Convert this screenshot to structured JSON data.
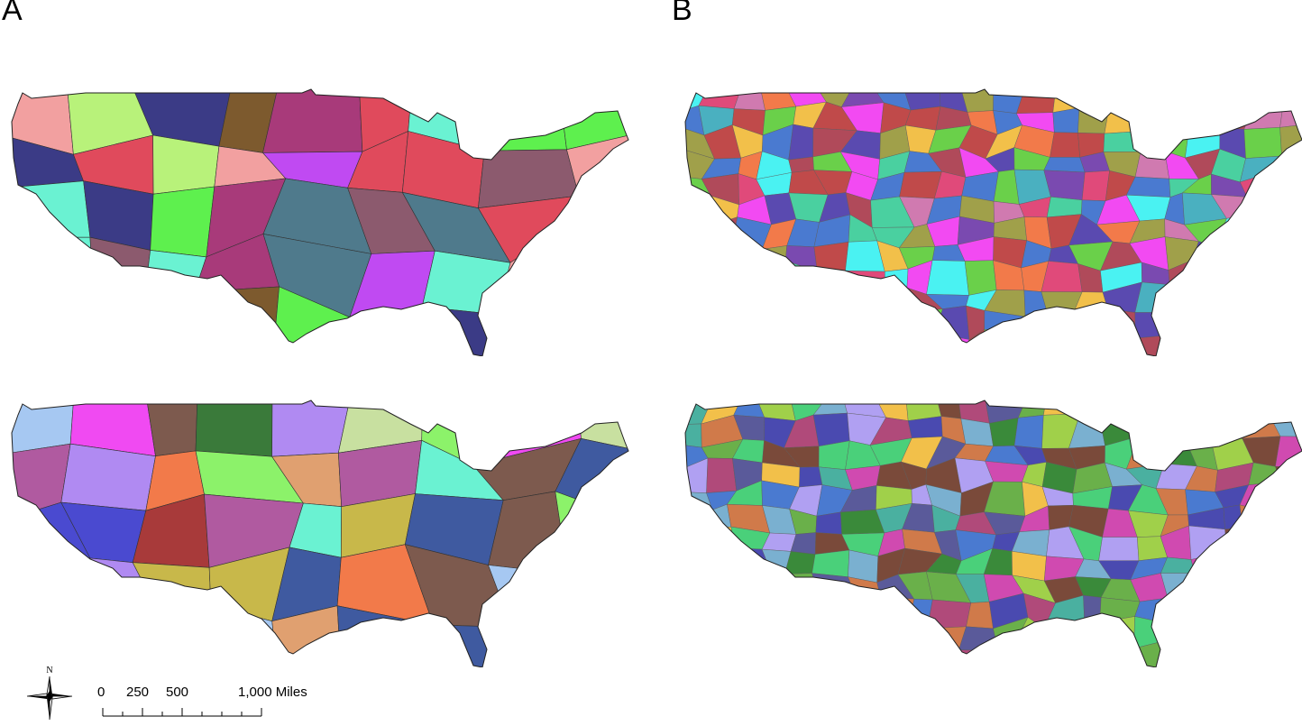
{
  "panels": {
    "a_label": "A",
    "b_label": "B"
  },
  "compass": {
    "north_label": "N"
  },
  "scale": {
    "labels": [
      "0",
      "250",
      "500",
      "1,000 Miles"
    ]
  },
  "maps": {
    "a_top": {
      "fill_colors": [
        "#4b7a3a",
        "#7d5a2e",
        "#3b3b86",
        "#e04a5c",
        "#5ef04e",
        "#b49af2",
        "#a6cff2",
        "#4f7a8c",
        "#f2c94f",
        "#a83a7a",
        "#6af2d2",
        "#8c5a6e",
        "#b8f27a",
        "#f2a0a0",
        "#c04af2"
      ]
    },
    "a_bottom": {
      "fill_colors": [
        "#7d5a4e",
        "#8cf26a",
        "#3f5aa0",
        "#6af2d2",
        "#a6c8f2",
        "#3a7a3a",
        "#c8e0a0",
        "#f27a4a",
        "#b08af2",
        "#a83a3a",
        "#4a4ad0",
        "#e0a070",
        "#c8b84a",
        "#b05aa0",
        "#f04af2"
      ]
    },
    "b_top": {
      "fill_colors": [
        "#e04a7a",
        "#4ad0a0",
        "#7a4ab0",
        "#f2c04a",
        "#4a7ad0",
        "#b04a5a",
        "#6ad04a",
        "#d07ab0",
        "#4ab0c0",
        "#a0a04a",
        "#f27a4a",
        "#5a4ab0",
        "#c04a4a",
        "#4af2f2",
        "#f24af2"
      ]
    },
    "b_bottom": {
      "fill_colors": [
        "#4a7ad0",
        "#7a4a3a",
        "#6ab04a",
        "#d04ab0",
        "#4ab0a0",
        "#b0a0f2",
        "#f2c04a",
        "#5a5a9a",
        "#a0d04a",
        "#d07a4a",
        "#4a4ab0",
        "#4ad07a",
        "#b04a7a",
        "#7ab0d0",
        "#3a8a3a"
      ]
    }
  }
}
